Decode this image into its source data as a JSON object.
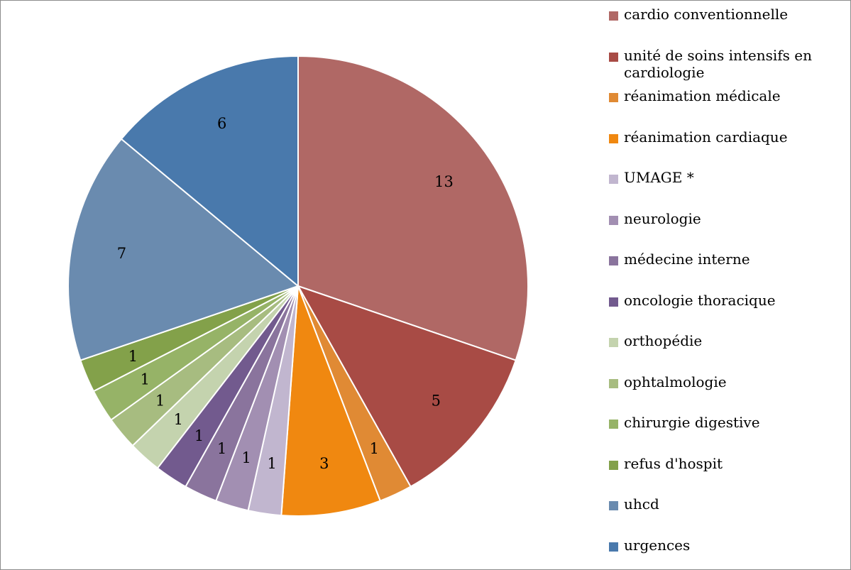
{
  "chart_data": {
    "type": "pie",
    "title": "",
    "legend_position": "right",
    "start_angle_deg": 0,
    "direction": "clockwise",
    "slices": [
      {
        "label": "cardio conventionnelle",
        "value": 13,
        "color": "#b06865"
      },
      {
        "label": "unité de soins intensifs en cardiologie",
        "value": 5,
        "color": "#a84b45"
      },
      {
        "label": "réanimation médicale",
        "value": 1,
        "color": "#e08a34"
      },
      {
        "label": "réanimation cardiaque",
        "value": 3,
        "color": "#f08810"
      },
      {
        "label": "UMAGE  *",
        "value": 1,
        "color": "#c1b6cf"
      },
      {
        "label": "neurologie",
        "value": 1,
        "color": "#a28fb2"
      },
      {
        "label": "médecine interne",
        "value": 1,
        "color": "#8a749d"
      },
      {
        "label": "oncologie thoracique",
        "value": 1,
        "color": "#725a8e"
      },
      {
        "label": "orthopédie",
        "value": 1,
        "color": "#c4d3ae"
      },
      {
        "label": "ophtalmologie",
        "value": 1,
        "color": "#a7bc80"
      },
      {
        "label": "chirurgie digestive",
        "value": 1,
        "color": "#96b367"
      },
      {
        "label": "refus d'hospit",
        "value": 1,
        "color": "#83a14a"
      },
      {
        "label": "uhcd",
        "value": 7,
        "color": "#6a8baf"
      },
      {
        "label": "urgences",
        "value": 6,
        "color": "#4979ac"
      }
    ]
  }
}
